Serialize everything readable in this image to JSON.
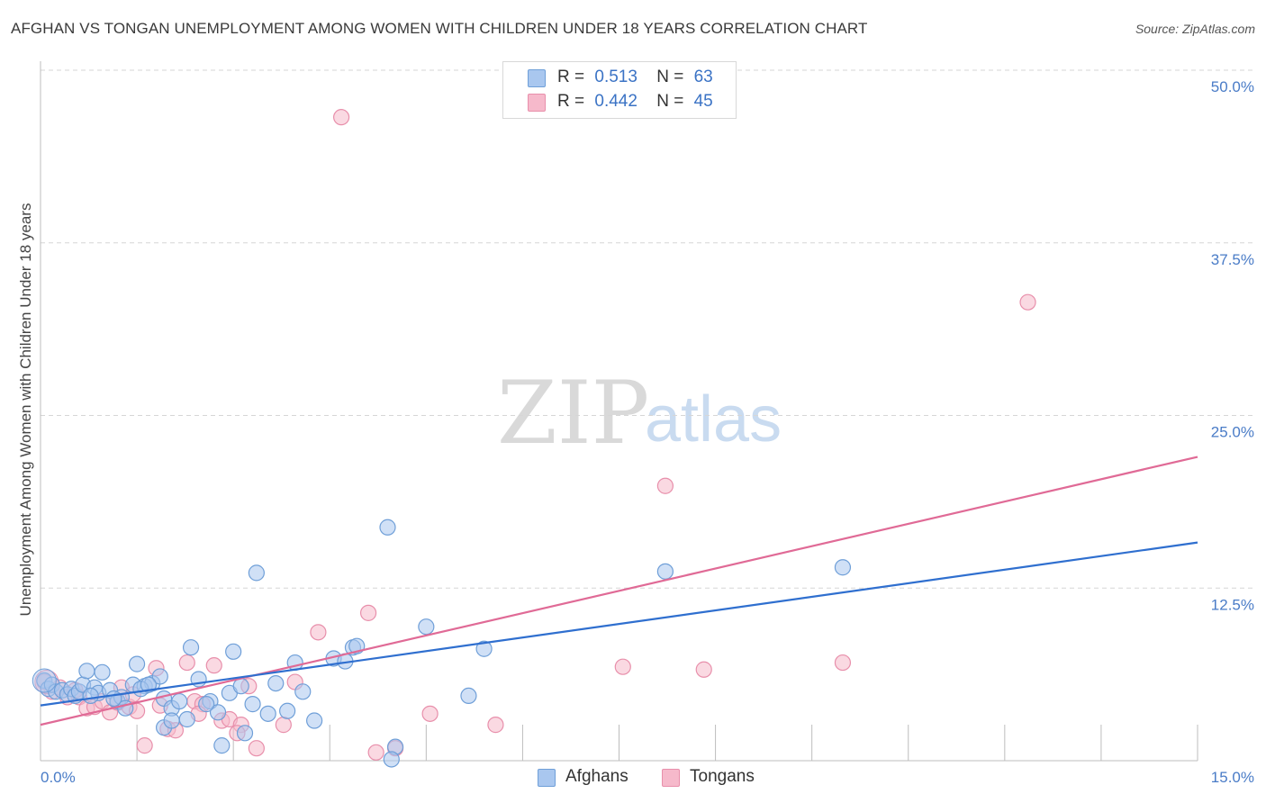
{
  "title": "AFGHAN VS TONGAN UNEMPLOYMENT AMONG WOMEN WITH CHILDREN UNDER 18 YEARS CORRELATION CHART",
  "source": "Source: ZipAtlas.com",
  "watermark": {
    "zip": "ZIP",
    "atlas": "atlas"
  },
  "legend": {
    "rows": [
      {
        "r_label": "R =",
        "r_value": "0.513",
        "n_label": "N =",
        "n_value": "63",
        "color": "#a9c7ef"
      },
      {
        "r_label": "R =",
        "r_value": "0.442",
        "n_label": "N =",
        "n_value": "45",
        "color": "#f6b9cb"
      }
    ]
  },
  "bottom_legend": [
    {
      "label": "Afghans",
      "color": "#a9c7ef"
    },
    {
      "label": "Tongans",
      "color": "#f6b9cb"
    }
  ],
  "colors": {
    "afghan_fill": "#a9c7ef",
    "afghan_stroke": "#6f9fd8",
    "afghan_line": "#2f6fcf",
    "tongan_fill": "#f6b9cb",
    "tongan_stroke": "#e88fab",
    "tongan_line": "#e06a96",
    "axis_text": "#4a7cc7",
    "grid": "#d6d6d6"
  },
  "chart_data": {
    "type": "scatter",
    "title": "AFGHAN VS TONGAN UNEMPLOYMENT AMONG WOMEN WITH CHILDREN UNDER 18 YEARS CORRELATION CHART",
    "xlabel": "",
    "ylabel": "Unemployment Among Women with Children Under 18 years",
    "xlim": [
      0,
      15
    ],
    "ylim": [
      0,
      50
    ],
    "x_tick_labels": [
      "0.0%",
      "15.0%"
    ],
    "y_ticks": [
      12.5,
      25.0,
      37.5,
      50.0
    ],
    "y_tick_labels": [
      "12.5%",
      "25.0%",
      "37.5%",
      "50.0%"
    ],
    "grid": "horizontal dashed",
    "series": [
      {
        "name": "Afghans",
        "trend": {
          "x": [
            0,
            15
          ],
          "y": [
            4.0,
            15.8
          ]
        },
        "points": [
          [
            0.05,
            5.8
          ],
          [
            0.1,
            5.2
          ],
          [
            0.15,
            5.5
          ],
          [
            0.2,
            5.0
          ],
          [
            0.28,
            5.1
          ],
          [
            0.35,
            4.8
          ],
          [
            0.4,
            5.2
          ],
          [
            0.45,
            4.7
          ],
          [
            0.5,
            5.0
          ],
          [
            0.55,
            5.5
          ],
          [
            0.6,
            6.5
          ],
          [
            0.7,
            5.3
          ],
          [
            0.75,
            4.9
          ],
          [
            0.8,
            6.4
          ],
          [
            0.9,
            5.1
          ],
          [
            1.0,
            4.3
          ],
          [
            1.05,
            4.6
          ],
          [
            1.1,
            3.8
          ],
          [
            1.2,
            5.5
          ],
          [
            1.25,
            7.0
          ],
          [
            1.35,
            5.4
          ],
          [
            1.45,
            5.6
          ],
          [
            1.55,
            6.1
          ],
          [
            1.6,
            4.5
          ],
          [
            1.7,
            3.8
          ],
          [
            1.8,
            4.3
          ],
          [
            1.9,
            3.0
          ],
          [
            1.95,
            8.2
          ],
          [
            2.05,
            5.9
          ],
          [
            2.2,
            4.3
          ],
          [
            2.3,
            3.5
          ],
          [
            2.35,
            1.1
          ],
          [
            2.45,
            4.9
          ],
          [
            2.5,
            7.9
          ],
          [
            2.6,
            5.4
          ],
          [
            2.75,
            4.1
          ],
          [
            2.8,
            13.6
          ],
          [
            2.95,
            3.4
          ],
          [
            3.05,
            5.6
          ],
          [
            3.2,
            3.6
          ],
          [
            3.3,
            7.1
          ],
          [
            3.4,
            5.0
          ],
          [
            3.55,
            2.9
          ],
          [
            3.8,
            7.4
          ],
          [
            3.95,
            7.2
          ],
          [
            4.05,
            8.2
          ],
          [
            4.1,
            8.3
          ],
          [
            4.5,
            16.9
          ],
          [
            4.6,
            1.0
          ],
          [
            4.55,
            0.1
          ],
          [
            5.0,
            9.7
          ],
          [
            5.55,
            4.7
          ],
          [
            5.75,
            8.1
          ],
          [
            8.1,
            13.7
          ],
          [
            10.4,
            14.0
          ],
          [
            1.6,
            2.4
          ],
          [
            1.7,
            2.9
          ],
          [
            2.15,
            4.1
          ],
          [
            1.3,
            5.2
          ],
          [
            1.4,
            5.5
          ],
          [
            0.65,
            4.7
          ],
          [
            0.95,
            4.5
          ],
          [
            2.65,
            2.0
          ]
        ]
      },
      {
        "name": "Tongans",
        "trend": {
          "x": [
            0,
            15
          ],
          "y": [
            2.6,
            22.0
          ]
        },
        "points": [
          [
            0.05,
            5.7
          ],
          [
            0.15,
            5.0
          ],
          [
            0.25,
            5.3
          ],
          [
            0.35,
            4.6
          ],
          [
            0.5,
            4.6
          ],
          [
            0.6,
            3.8
          ],
          [
            0.7,
            3.9
          ],
          [
            0.8,
            4.3
          ],
          [
            0.9,
            3.5
          ],
          [
            1.0,
            4.2
          ],
          [
            1.05,
            5.3
          ],
          [
            1.15,
            3.9
          ],
          [
            1.25,
            3.6
          ],
          [
            1.35,
            1.1
          ],
          [
            1.5,
            6.7
          ],
          [
            1.55,
            4.0
          ],
          [
            1.65,
            2.3
          ],
          [
            1.75,
            2.2
          ],
          [
            1.9,
            7.1
          ],
          [
            2.0,
            4.3
          ],
          [
            2.1,
            4.1
          ],
          [
            2.25,
            6.9
          ],
          [
            2.35,
            2.9
          ],
          [
            2.45,
            3.0
          ],
          [
            2.6,
            2.6
          ],
          [
            2.7,
            5.4
          ],
          [
            2.8,
            0.9
          ],
          [
            3.15,
            2.6
          ],
          [
            3.3,
            5.7
          ],
          [
            3.6,
            9.3
          ],
          [
            3.9,
            46.6
          ],
          [
            4.25,
            10.7
          ],
          [
            4.35,
            0.6
          ],
          [
            4.6,
            0.9
          ],
          [
            5.05,
            3.4
          ],
          [
            5.9,
            2.6
          ],
          [
            7.55,
            6.8
          ],
          [
            8.1,
            19.9
          ],
          [
            8.6,
            6.6
          ],
          [
            10.4,
            7.1
          ],
          [
            12.8,
            33.2
          ],
          [
            1.2,
            4.8
          ],
          [
            0.45,
            5.1
          ],
          [
            2.05,
            3.4
          ],
          [
            2.55,
            2.0
          ]
        ]
      }
    ]
  }
}
